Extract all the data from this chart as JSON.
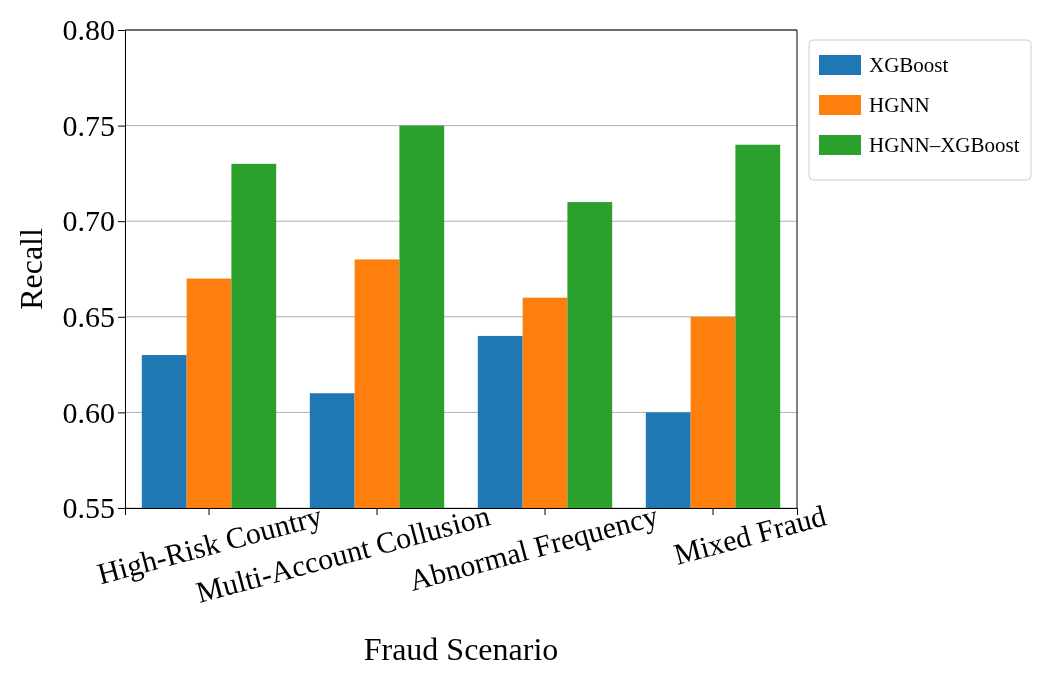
{
  "chart_data": {
    "type": "bar",
    "xlabel": "Fraud Scenario",
    "ylabel": "Recall",
    "categories": [
      "High-Risk Country",
      "Multi-Account Collusion",
      "Abnormal Frequency",
      "Mixed Fraud"
    ],
    "series": [
      {
        "name": "XGBoost",
        "color": "#1f77b4",
        "values": [
          0.63,
          0.61,
          0.64,
          0.6
        ]
      },
      {
        "name": "HGNN",
        "color": "#ff7f0e",
        "values": [
          0.67,
          0.68,
          0.66,
          0.65
        ]
      },
      {
        "name": "HGNN–XGBoost",
        "color": "#2ca02c",
        "values": [
          0.73,
          0.75,
          0.71,
          0.74
        ]
      }
    ],
    "ylim": [
      0.55,
      0.8
    ],
    "yticks": [
      {
        "value": 0.55,
        "label": "0.55"
      },
      {
        "value": 0.6,
        "label": "0.60"
      },
      {
        "value": 0.65,
        "label": "0.65"
      },
      {
        "value": 0.7,
        "label": "0.70"
      },
      {
        "value": 0.75,
        "label": "0.75"
      },
      {
        "value": 0.8,
        "label": "0.80"
      }
    ],
    "grid": "y",
    "legend": "top right"
  }
}
